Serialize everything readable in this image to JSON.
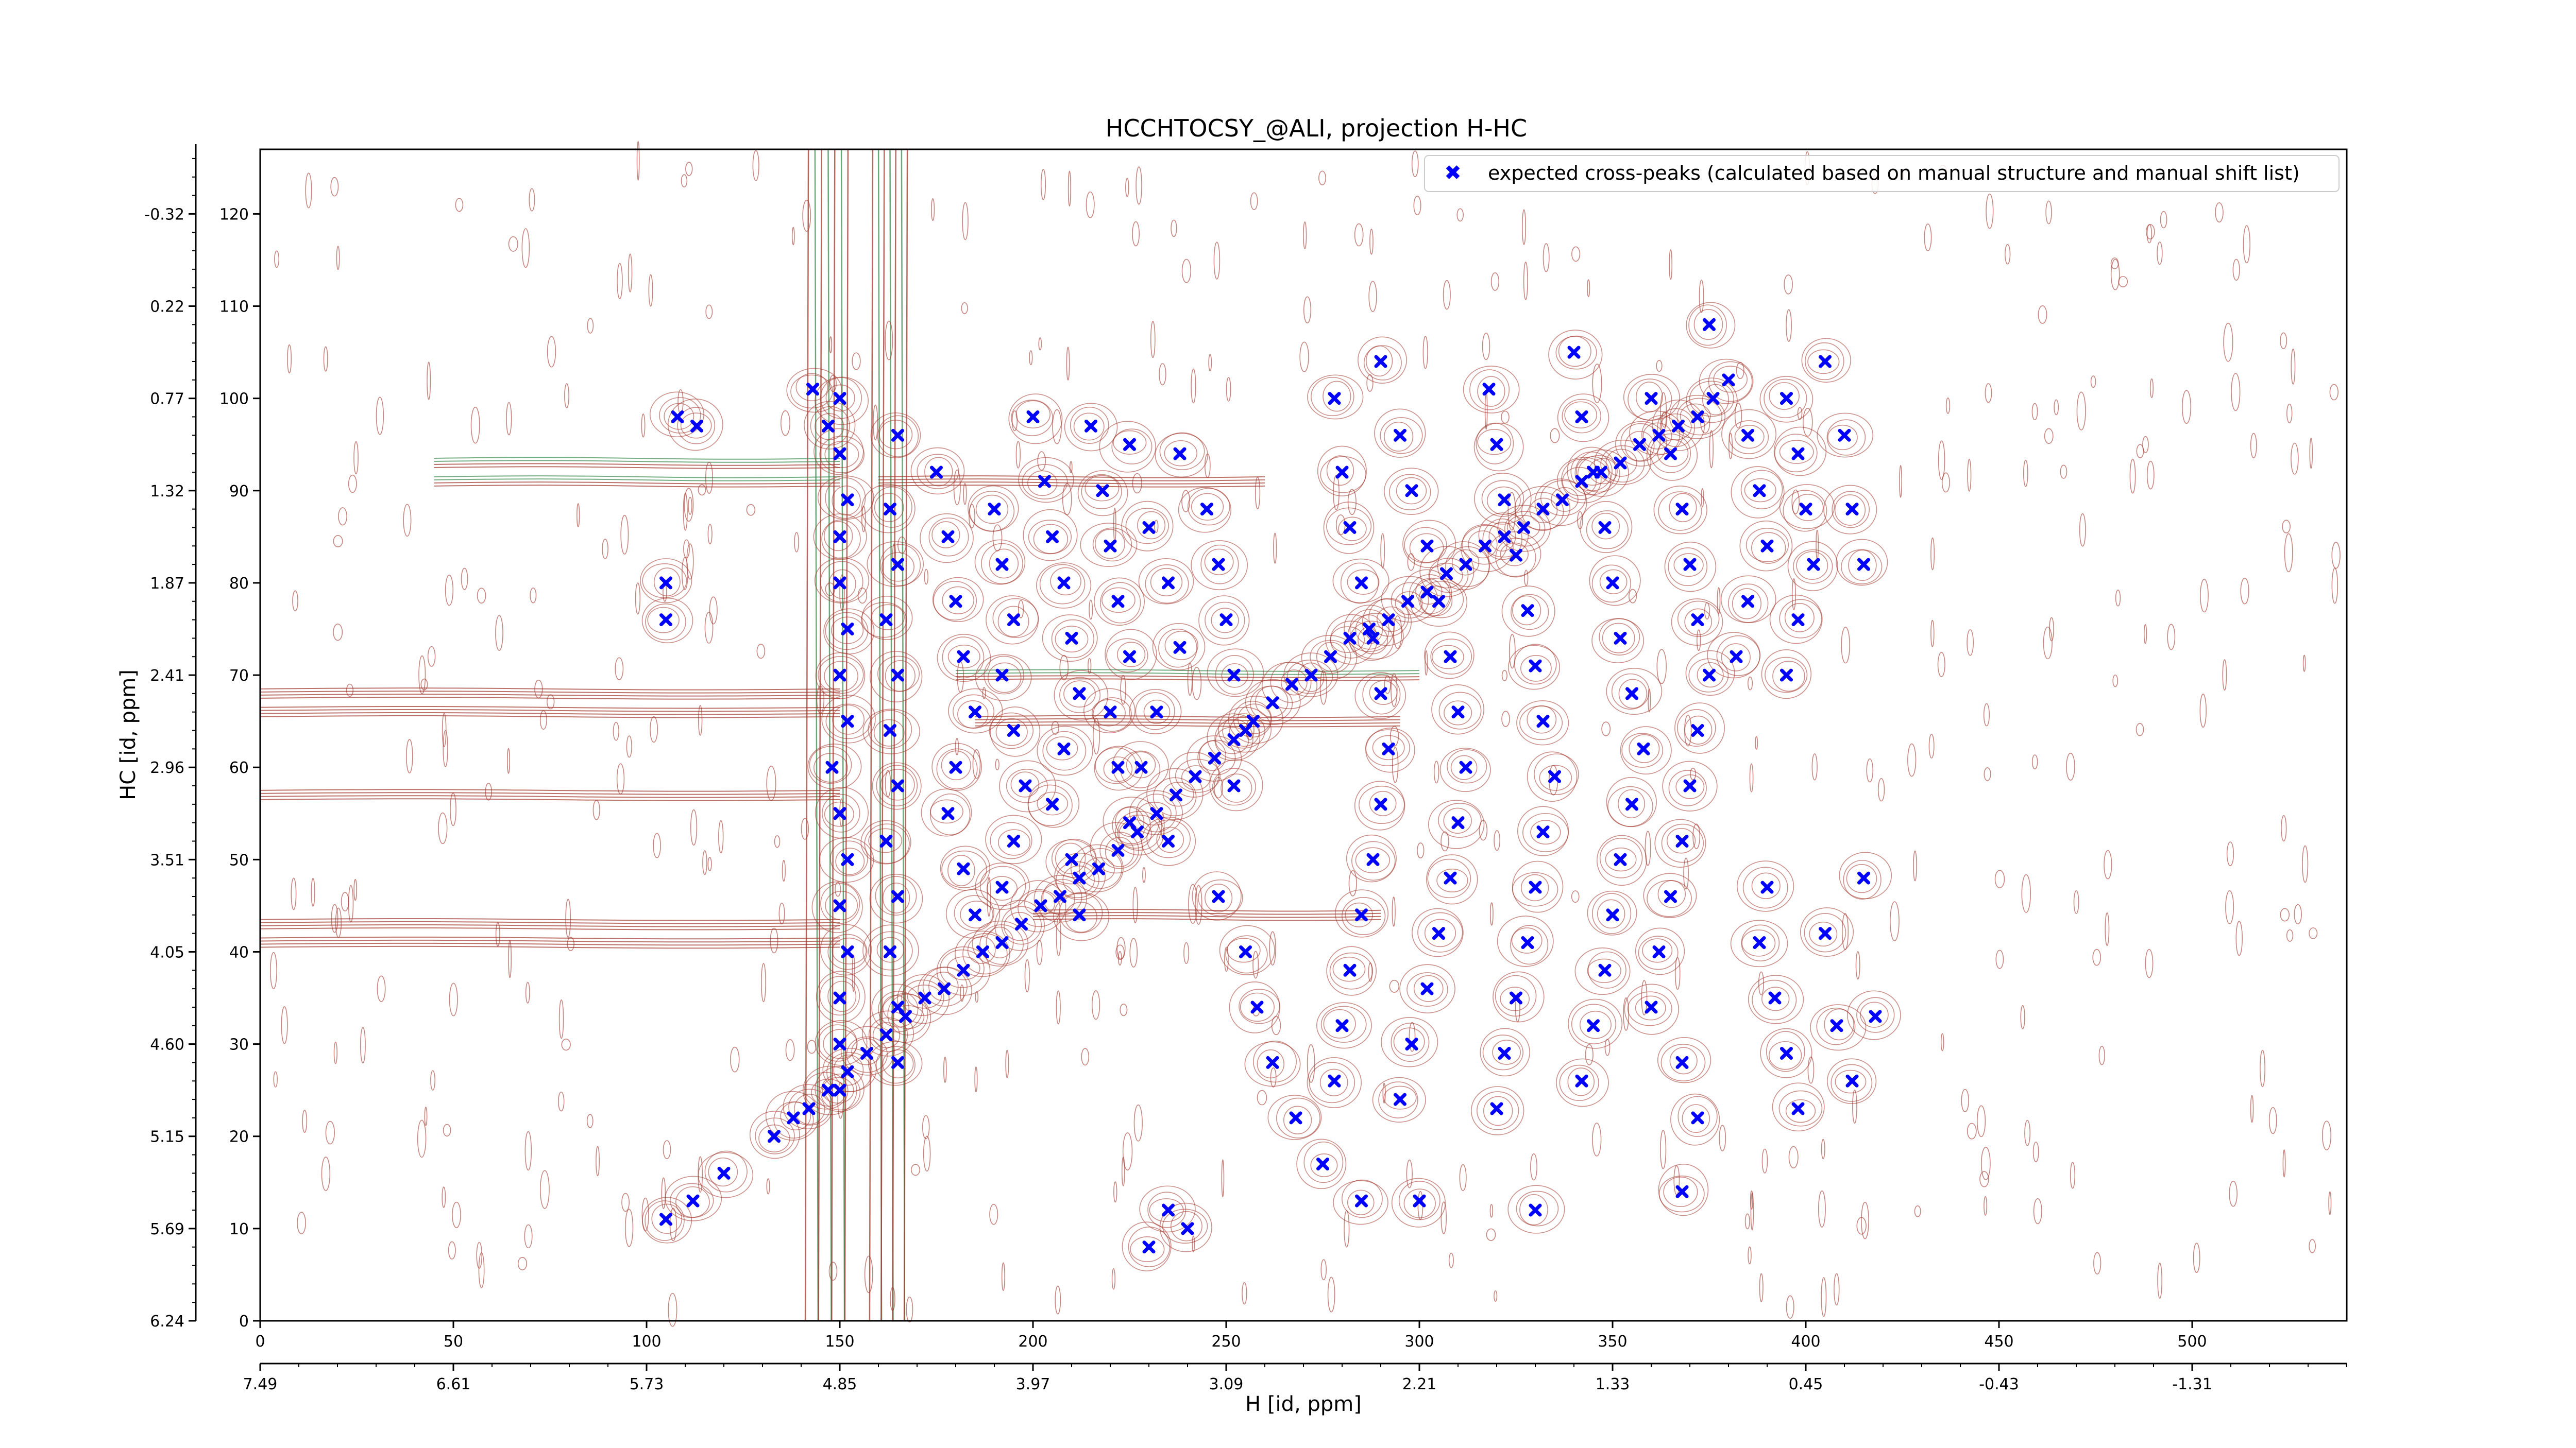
{
  "chart_data": {
    "type": "scatter",
    "title": "HCCHTOCSY_@ALI, projection H-HC",
    "xlabel": "H [id, ppm]",
    "ylabel": "HC [id, ppm]",
    "xlim": [
      0,
      540
    ],
    "ylim": [
      0,
      127
    ],
    "x_ticks": [
      0,
      50,
      100,
      150,
      200,
      250,
      300,
      350,
      400,
      450,
      500
    ],
    "y_ticks": [
      0,
      10,
      20,
      30,
      40,
      50,
      60,
      70,
      80,
      90,
      100,
      110,
      120
    ],
    "x_ppm_tick_labels": [
      "7.49",
      "6.61",
      "5.73",
      "4.85",
      "3.97",
      "3.09",
      "2.21",
      "1.33",
      "0.45",
      "-0.43",
      "-1.31"
    ],
    "y_ppm_tick_labels": [
      "6.24",
      "5.69",
      "5.15",
      "4.60",
      "4.05",
      "3.51",
      "2.96",
      "2.41",
      "1.87",
      "1.32",
      "0.77",
      "0.22",
      "-0.32"
    ],
    "grid": false,
    "legend_position": "top-right",
    "colors": {
      "points": "#0000ff",
      "contour_positive": "#a0342a",
      "contour_negative": "#3b8a4e"
    },
    "series": [
      {
        "name": "expected cross-peaks (calculated based on manual structure and manual shift list)",
        "marker": "x",
        "diagonal": [
          [
            133,
            20
          ],
          [
            138,
            22
          ],
          [
            142,
            23
          ],
          [
            147,
            25
          ],
          [
            152,
            27
          ],
          [
            157,
            29
          ],
          [
            162,
            31
          ],
          [
            167,
            33
          ],
          [
            172,
            35
          ],
          [
            177,
            36
          ],
          [
            182,
            38
          ],
          [
            187,
            40
          ],
          [
            192,
            41
          ],
          [
            197,
            43
          ],
          [
            202,
            45
          ],
          [
            207,
            46
          ],
          [
            212,
            48
          ],
          [
            217,
            49
          ],
          [
            222,
            51
          ],
          [
            227,
            53
          ],
          [
            232,
            55
          ],
          [
            237,
            57
          ],
          [
            242,
            59
          ],
          [
            247,
            61
          ],
          [
            252,
            63
          ],
          [
            257,
            65
          ],
          [
            262,
            67
          ],
          [
            267,
            69
          ],
          [
            272,
            70
          ],
          [
            277,
            72
          ],
          [
            282,
            74
          ],
          [
            287,
            75
          ],
          [
            292,
            76
          ],
          [
            297,
            78
          ],
          [
            302,
            79
          ],
          [
            307,
            81
          ],
          [
            312,
            82
          ],
          [
            317,
            84
          ],
          [
            322,
            85
          ],
          [
            327,
            86
          ],
          [
            332,
            88
          ],
          [
            337,
            89
          ],
          [
            342,
            91
          ],
          [
            347,
            92
          ],
          [
            352,
            93
          ],
          [
            357,
            95
          ],
          [
            362,
            96
          ],
          [
            367,
            97
          ],
          [
            372,
            98
          ],
          [
            376,
            100
          ]
        ],
        "off_diagonal": [
          [
            105,
            11
          ],
          [
            112,
            13
          ],
          [
            120,
            16
          ],
          [
            113,
            97
          ],
          [
            108,
            98
          ],
          [
            105,
            80
          ],
          [
            105,
            76
          ],
          [
            150,
            100
          ],
          [
            143,
            101
          ],
          [
            147,
            97
          ],
          [
            150,
            94
          ],
          [
            152,
            89
          ],
          [
            150,
            85
          ],
          [
            150,
            80
          ],
          [
            152,
            75
          ],
          [
            150,
            70
          ],
          [
            152,
            65
          ],
          [
            148,
            60
          ],
          [
            150,
            55
          ],
          [
            152,
            50
          ],
          [
            150,
            45
          ],
          [
            152,
            40
          ],
          [
            150,
            35
          ],
          [
            150,
            30
          ],
          [
            150,
            25
          ],
          [
            165,
            96
          ],
          [
            163,
            88
          ],
          [
            165,
            82
          ],
          [
            162,
            76
          ],
          [
            165,
            70
          ],
          [
            163,
            64
          ],
          [
            165,
            58
          ],
          [
            162,
            52
          ],
          [
            165,
            46
          ],
          [
            163,
            40
          ],
          [
            165,
            34
          ],
          [
            165,
            28
          ],
          [
            175,
            92
          ],
          [
            178,
            85
          ],
          [
            180,
            78
          ],
          [
            182,
            72
          ],
          [
            185,
            66
          ],
          [
            180,
            60
          ],
          [
            178,
            55
          ],
          [
            182,
            49
          ],
          [
            185,
            44
          ],
          [
            190,
            88
          ],
          [
            192,
            82
          ],
          [
            195,
            76
          ],
          [
            192,
            70
          ],
          [
            195,
            64
          ],
          [
            198,
            58
          ],
          [
            195,
            52
          ],
          [
            192,
            47
          ],
          [
            200,
            98
          ],
          [
            203,
            91
          ],
          [
            205,
            85
          ],
          [
            208,
            80
          ],
          [
            210,
            74
          ],
          [
            212,
            68
          ],
          [
            208,
            62
          ],
          [
            205,
            56
          ],
          [
            210,
            50
          ],
          [
            212,
            44
          ],
          [
            215,
            97
          ],
          [
            218,
            90
          ],
          [
            220,
            84
          ],
          [
            222,
            78
          ],
          [
            225,
            72
          ],
          [
            220,
            66
          ],
          [
            222,
            60
          ],
          [
            225,
            54
          ],
          [
            225,
            95
          ],
          [
            230,
            86
          ],
          [
            235,
            80
          ],
          [
            238,
            73
          ],
          [
            232,
            66
          ],
          [
            228,
            60
          ],
          [
            235,
            52
          ],
          [
            238,
            94
          ],
          [
            245,
            88
          ],
          [
            248,
            82
          ],
          [
            250,
            76
          ],
          [
            252,
            70
          ],
          [
            255,
            64
          ],
          [
            252,
            58
          ],
          [
            248,
            46
          ],
          [
            255,
            40
          ],
          [
            258,
            34
          ],
          [
            262,
            28
          ],
          [
            268,
            22
          ],
          [
            275,
            17
          ],
          [
            278,
            100
          ],
          [
            280,
            92
          ],
          [
            282,
            86
          ],
          [
            285,
            80
          ],
          [
            288,
            74
          ],
          [
            290,
            68
          ],
          [
            292,
            62
          ],
          [
            290,
            56
          ],
          [
            288,
            50
          ],
          [
            285,
            44
          ],
          [
            282,
            38
          ],
          [
            280,
            32
          ],
          [
            278,
            26
          ],
          [
            285,
            13
          ],
          [
            290,
            104
          ],
          [
            295,
            96
          ],
          [
            298,
            90
          ],
          [
            302,
            84
          ],
          [
            305,
            78
          ],
          [
            308,
            72
          ],
          [
            310,
            66
          ],
          [
            312,
            60
          ],
          [
            310,
            54
          ],
          [
            308,
            48
          ],
          [
            305,
            42
          ],
          [
            302,
            36
          ],
          [
            298,
            30
          ],
          [
            295,
            24
          ],
          [
            300,
            13
          ],
          [
            318,
            101
          ],
          [
            320,
            95
          ],
          [
            322,
            89
          ],
          [
            325,
            83
          ],
          [
            328,
            77
          ],
          [
            330,
            71
          ],
          [
            332,
            65
          ],
          [
            335,
            59
          ],
          [
            332,
            53
          ],
          [
            330,
            47
          ],
          [
            328,
            41
          ],
          [
            325,
            35
          ],
          [
            322,
            29
          ],
          [
            320,
            23
          ],
          [
            330,
            12
          ],
          [
            340,
            105
          ],
          [
            342,
            98
          ],
          [
            345,
            92
          ],
          [
            348,
            86
          ],
          [
            350,
            80
          ],
          [
            352,
            74
          ],
          [
            355,
            68
          ],
          [
            358,
            62
          ],
          [
            355,
            56
          ],
          [
            352,
            50
          ],
          [
            350,
            44
          ],
          [
            348,
            38
          ],
          [
            345,
            32
          ],
          [
            342,
            26
          ],
          [
            360,
            100
          ],
          [
            365,
            94
          ],
          [
            368,
            88
          ],
          [
            370,
            82
          ],
          [
            372,
            76
          ],
          [
            375,
            70
          ],
          [
            372,
            64
          ],
          [
            370,
            58
          ],
          [
            368,
            52
          ],
          [
            365,
            46
          ],
          [
            362,
            40
          ],
          [
            360,
            34
          ],
          [
            368,
            28
          ],
          [
            372,
            22
          ],
          [
            368,
            14
          ],
          [
            375,
            108
          ],
          [
            380,
            102
          ],
          [
            385,
            96
          ],
          [
            388,
            90
          ],
          [
            390,
            84
          ],
          [
            385,
            78
          ],
          [
            382,
            72
          ],
          [
            395,
            100
          ],
          [
            398,
            94
          ],
          [
            400,
            88
          ],
          [
            402,
            82
          ],
          [
            398,
            76
          ],
          [
            395,
            70
          ],
          [
            390,
            47
          ],
          [
            388,
            41
          ],
          [
            392,
            35
          ],
          [
            395,
            29
          ],
          [
            398,
            23
          ],
          [
            405,
            104
          ],
          [
            410,
            96
          ],
          [
            412,
            88
          ],
          [
            415,
            82
          ],
          [
            408,
            32
          ],
          [
            412,
            26
          ],
          [
            418,
            33
          ],
          [
            405,
            42
          ],
          [
            415,
            48
          ],
          [
            240,
            10
          ],
          [
            235,
            12
          ],
          [
            230,
            8
          ]
        ]
      }
    ]
  }
}
